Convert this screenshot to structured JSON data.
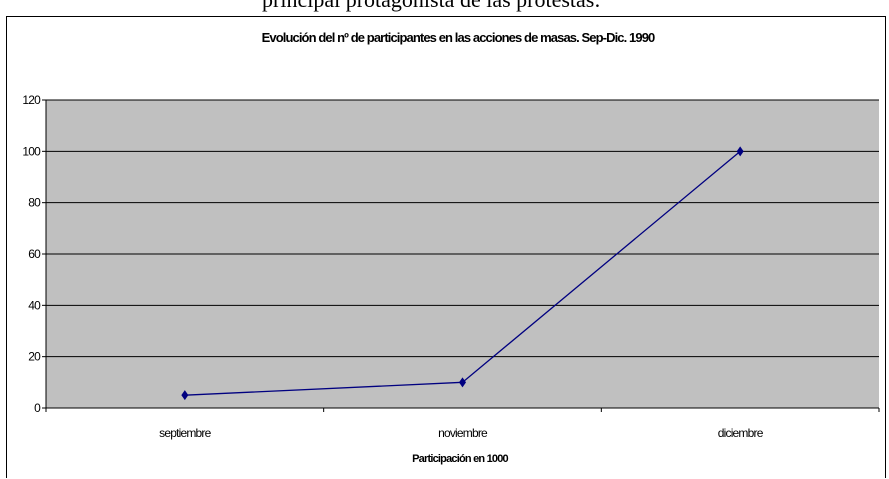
{
  "top_text": "principal protagonista de las protestas:",
  "chart_data": {
    "type": "line",
    "title": "Evolución del nº de participantes en las acciones de masas. Sep-Dic. 1990",
    "xlabel": "Participación en 1000",
    "ylabel": "",
    "categories": [
      "septiembre",
      "noviembre",
      "diciembre"
    ],
    "series": [
      {
        "values": [
          5,
          10,
          100
        ]
      }
    ],
    "ylim": [
      0,
      120
    ],
    "yticks": [
      0,
      20,
      40,
      60,
      80,
      100,
      120
    ],
    "grid": true,
    "legend": "none",
    "colors": {
      "plot_bg": "#c0c0c0",
      "line": "#000080",
      "marker": "#000080",
      "grid": "#000000"
    }
  }
}
